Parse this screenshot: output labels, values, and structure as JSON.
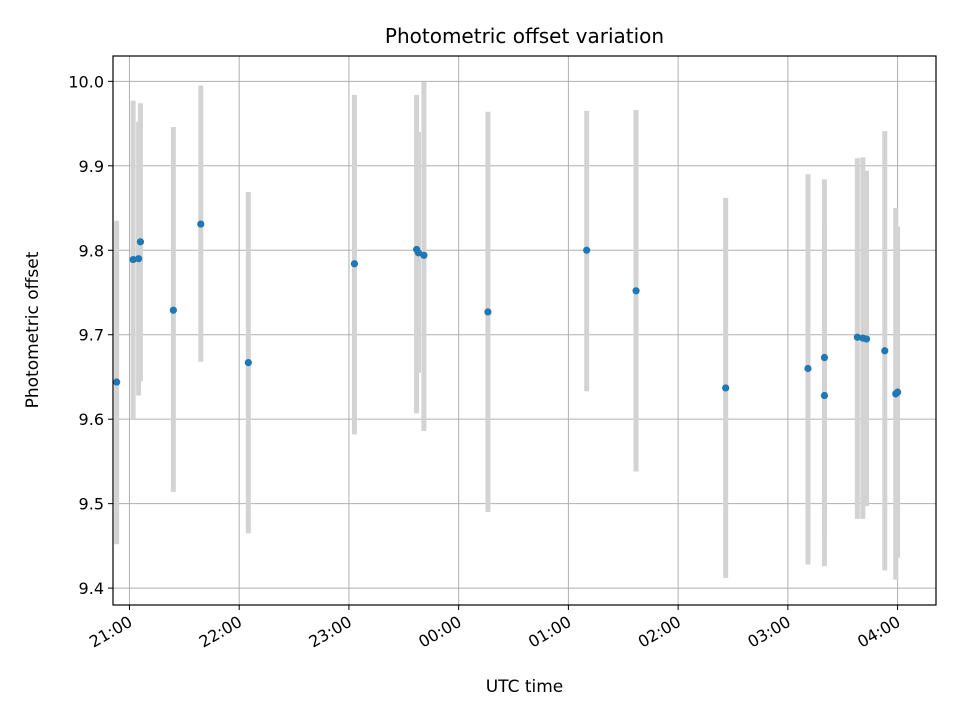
{
  "chart_data": {
    "type": "scatter",
    "title": "Photometric offset variation",
    "xlabel": "UTC time",
    "ylabel": "Photometric offset",
    "grid": true,
    "colors": {
      "point": "#1f77b4",
      "errorbar": "#d3d3d3",
      "grid": "#b0b0b0"
    },
    "x_ticks": [
      "21:00",
      "22:00",
      "23:00",
      "00:00",
      "01:00",
      "02:00",
      "03:00",
      "04:00"
    ],
    "y_ticks": [
      "9.4",
      "9.5",
      "9.6",
      "9.7",
      "9.8",
      "9.9",
      "10.0"
    ],
    "xlim": [
      "20:51",
      "04:21"
    ],
    "ylim": [
      9.38,
      10.03
    ],
    "x_tick_label_rotation": 30,
    "points": [
      {
        "x": "20:53",
        "y": 9.644,
        "ylow": 9.452,
        "yhigh": 9.835
      },
      {
        "x": "21:02",
        "y": 9.789,
        "ylow": 9.6,
        "yhigh": 9.977
      },
      {
        "x": "21:05",
        "y": 9.79,
        "ylow": 9.628,
        "yhigh": 9.952
      },
      {
        "x": "21:06",
        "y": 9.81,
        "ylow": 9.645,
        "yhigh": 9.974
      },
      {
        "x": "21:24",
        "y": 9.729,
        "ylow": 9.514,
        "yhigh": 9.946
      },
      {
        "x": "21:39",
        "y": 9.831,
        "ylow": 9.668,
        "yhigh": 9.995
      },
      {
        "x": "22:05",
        "y": 9.667,
        "ylow": 9.465,
        "yhigh": 9.869
      },
      {
        "x": "23:03",
        "y": 9.784,
        "ylow": 9.582,
        "yhigh": 9.984
      },
      {
        "x": "23:37",
        "y": 9.801,
        "ylow": 9.607,
        "yhigh": 9.984
      },
      {
        "x": "23:38",
        "y": 9.797,
        "ylow": 9.655,
        "yhigh": 9.94
      },
      {
        "x": "23:41",
        "y": 9.794,
        "ylow": 9.586,
        "yhigh": 9.999
      },
      {
        "x": "00:16",
        "y": 9.727,
        "ylow": 9.49,
        "yhigh": 9.964
      },
      {
        "x": "01:10",
        "y": 9.8,
        "ylow": 9.633,
        "yhigh": 9.965
      },
      {
        "x": "01:37",
        "y": 9.752,
        "ylow": 9.538,
        "yhigh": 9.966
      },
      {
        "x": "02:26",
        "y": 9.637,
        "ylow": 9.412,
        "yhigh": 9.862
      },
      {
        "x": "03:11",
        "y": 9.66,
        "ylow": 9.428,
        "yhigh": 9.89
      },
      {
        "x": "03:20",
        "y": 9.673,
        "ylow": 9.462,
        "yhigh": 9.884
      },
      {
        "x": "03:20",
        "y": 9.628,
        "ylow": 9.426,
        "yhigh": 9.83
      },
      {
        "x": "03:38",
        "y": 9.697,
        "ylow": 9.482,
        "yhigh": 9.909
      },
      {
        "x": "03:41",
        "y": 9.696,
        "ylow": 9.482,
        "yhigh": 9.91
      },
      {
        "x": "03:43",
        "y": 9.695,
        "ylow": 9.497,
        "yhigh": 9.894
      },
      {
        "x": "03:53",
        "y": 9.681,
        "ylow": 9.421,
        "yhigh": 9.941
      },
      {
        "x": "03:59",
        "y": 9.63,
        "ylow": 9.41,
        "yhigh": 9.85
      },
      {
        "x": "04:00",
        "y": 9.632,
        "ylow": 9.436,
        "yhigh": 9.828
      }
    ]
  }
}
